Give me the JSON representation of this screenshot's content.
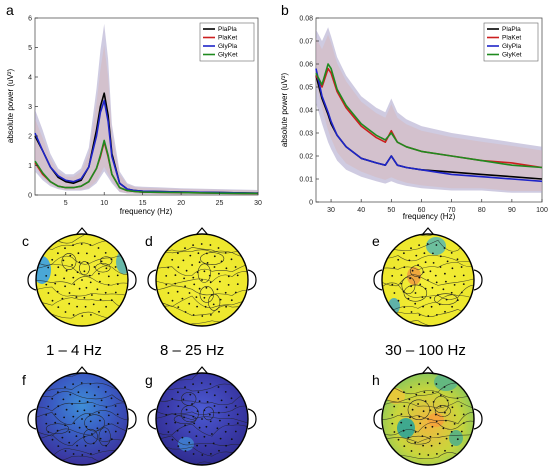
{
  "panel_labels": [
    "a",
    "b",
    "c",
    "d",
    "e",
    "f",
    "g",
    "h"
  ],
  "band_labels": [
    "1 – 4 Hz",
    "8 – 25 Hz",
    "30 – 100 Hz"
  ],
  "colors": {
    "PlaPla": "#000000",
    "PlaKet": "#cc1f1f",
    "GlyPla": "#1e24c8",
    "GlyKet": "#1f8a1f",
    "topo_yellow": "#f0ec2a",
    "topo_deep_blue": "#3a2a9c",
    "topo_mid_blue": "#4a6ad0"
  },
  "chart_data": [
    {
      "type": "line",
      "panel": "a",
      "xlabel": "frequency (Hz)",
      "ylabel": "absolute power (uV²)",
      "xlim": [
        1,
        30
      ],
      "ylim": [
        0,
        6
      ],
      "xticks": [
        5,
        10,
        15,
        20,
        25,
        30
      ],
      "yticks": [
        0,
        1,
        2,
        3,
        4,
        5,
        6
      ],
      "legend": "top-right",
      "x": [
        1,
        2,
        3,
        4,
        5,
        6,
        7,
        8,
        9,
        9.5,
        10,
        10.5,
        11,
        12,
        13,
        14,
        15,
        17,
        20,
        25,
        30
      ],
      "series": [
        {
          "name": "PlaPla",
          "color": "#000000",
          "values": [
            2.0,
            1.5,
            0.95,
            0.6,
            0.45,
            0.4,
            0.5,
            0.95,
            2.2,
            3.0,
            3.45,
            2.7,
            1.4,
            0.4,
            0.2,
            0.15,
            0.13,
            0.12,
            0.1,
            0.08,
            0.06
          ]
        },
        {
          "name": "PlaKet",
          "color": "#cc1f1f",
          "values": [
            1.1,
            0.7,
            0.45,
            0.3,
            0.25,
            0.25,
            0.3,
            0.45,
            0.9,
            1.3,
            1.8,
            1.3,
            0.7,
            0.25,
            0.15,
            0.12,
            0.1,
            0.09,
            0.08,
            0.06,
            0.05
          ]
        },
        {
          "name": "GlyPla",
          "color": "#1e24c8",
          "values": [
            2.1,
            1.5,
            0.95,
            0.65,
            0.5,
            0.45,
            0.55,
            0.95,
            2.0,
            2.8,
            3.2,
            2.5,
            1.3,
            0.4,
            0.2,
            0.15,
            0.13,
            0.12,
            0.1,
            0.08,
            0.06
          ]
        },
        {
          "name": "GlyKet",
          "color": "#1f8a1f",
          "values": [
            1.15,
            0.75,
            0.45,
            0.3,
            0.25,
            0.25,
            0.3,
            0.45,
            0.9,
            1.35,
            1.85,
            1.35,
            0.7,
            0.25,
            0.15,
            0.12,
            0.1,
            0.09,
            0.08,
            0.06,
            0.05
          ]
        }
      ],
      "band_upper": [
        2.9,
        2.2,
        1.4,
        0.9,
        0.7,
        0.7,
        0.9,
        1.6,
        3.6,
        4.9,
        5.8,
        4.6,
        2.4,
        0.8,
        0.4,
        0.3,
        0.28,
        0.26,
        0.23,
        0.2,
        0.17
      ],
      "band_lower": [
        0.8,
        0.5,
        0.3,
        0.2,
        0.15,
        0.15,
        0.15,
        0.2,
        0.4,
        0.6,
        0.8,
        0.6,
        0.4,
        0.1,
        0.05,
        0.04,
        0.03,
        0.03,
        0.02,
        0.02,
        0.01
      ]
    },
    {
      "type": "line",
      "panel": "b",
      "xlabel": "frequency (Hz)",
      "ylabel": "absolute power (uV²)",
      "xlim": [
        25,
        100
      ],
      "ylim": [
        0,
        0.08
      ],
      "xticks": [
        30,
        40,
        50,
        60,
        70,
        80,
        90,
        100
      ],
      "yticks": [
        0,
        0.01,
        0.02,
        0.03,
        0.04,
        0.05,
        0.06,
        0.07,
        0.08
      ],
      "legend": "top-right",
      "x": [
        25,
        27,
        29,
        30,
        32,
        35,
        40,
        45,
        48,
        50,
        52,
        55,
        60,
        70,
        80,
        90,
        100
      ],
      "series": [
        {
          "name": "PlaPla",
          "color": "#000000",
          "values": [
            0.055,
            0.045,
            0.038,
            0.034,
            0.029,
            0.024,
            0.019,
            0.017,
            0.016,
            0.02,
            0.016,
            0.015,
            0.014,
            0.013,
            0.012,
            0.011,
            0.01
          ]
        },
        {
          "name": "PlaKet",
          "color": "#cc1f1f",
          "values": [
            0.055,
            0.05,
            0.058,
            0.056,
            0.048,
            0.041,
            0.033,
            0.028,
            0.026,
            0.031,
            0.026,
            0.024,
            0.022,
            0.02,
            0.018,
            0.017,
            0.015
          ]
        },
        {
          "name": "GlyPla",
          "color": "#1e24c8",
          "values": [
            0.058,
            0.046,
            0.039,
            0.035,
            0.029,
            0.024,
            0.019,
            0.017,
            0.016,
            0.02,
            0.016,
            0.015,
            0.014,
            0.012,
            0.011,
            0.01,
            0.009
          ]
        },
        {
          "name": "GlyKet",
          "color": "#1f8a1f",
          "values": [
            0.056,
            0.051,
            0.06,
            0.058,
            0.049,
            0.042,
            0.034,
            0.029,
            0.027,
            0.03,
            0.026,
            0.024,
            0.022,
            0.02,
            0.018,
            0.016,
            0.015
          ]
        }
      ],
      "band_upper": [
        0.075,
        0.07,
        0.076,
        0.072,
        0.063,
        0.055,
        0.046,
        0.041,
        0.039,
        0.045,
        0.039,
        0.036,
        0.033,
        0.03,
        0.028,
        0.026,
        0.024
      ],
      "band_lower": [
        0.043,
        0.034,
        0.026,
        0.023,
        0.018,
        0.014,
        0.011,
        0.009,
        0.008,
        0.009,
        0.008,
        0.007,
        0.006,
        0.005,
        0.005,
        0.004,
        0.004
      ]
    }
  ]
}
